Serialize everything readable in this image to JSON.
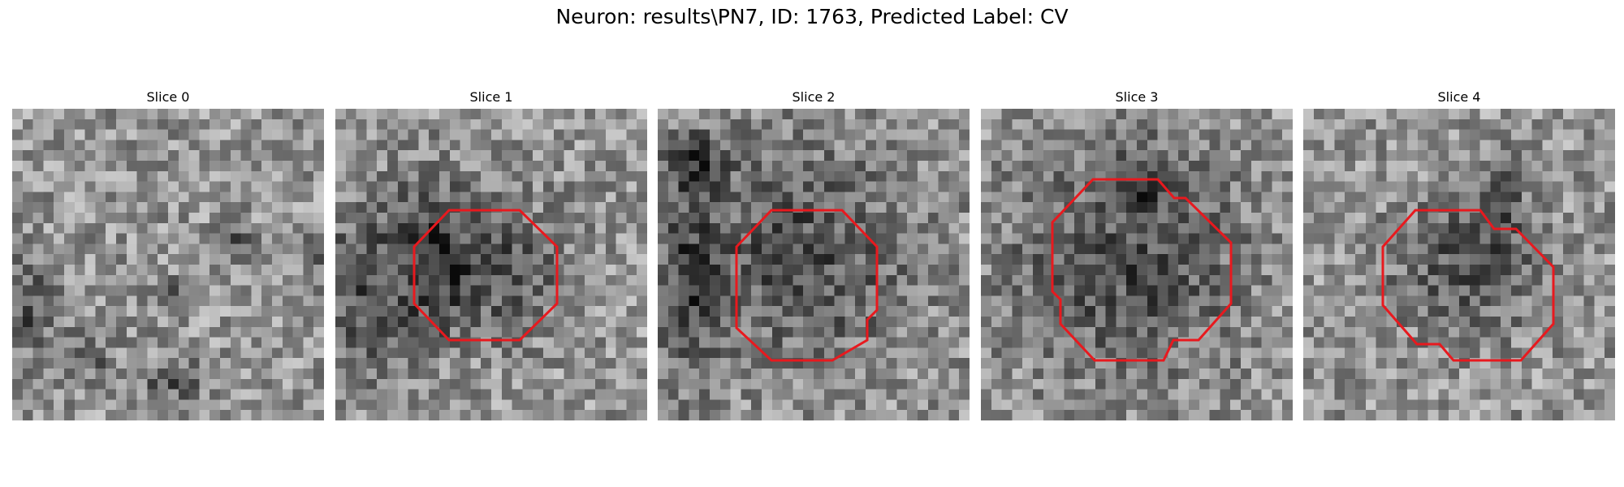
{
  "figure": {
    "title": "Neuron: results\\PN7, ID: 1763, Predicted Label: CV",
    "contour_color": "#e8191e"
  },
  "slices": [
    {
      "title": "Slice 0",
      "has_contour": false,
      "dark_blobs": [
        [
          0.03,
          0.62,
          0.09,
          0.14
        ],
        [
          0.2,
          0.78,
          0.09,
          0.06
        ],
        [
          0.7,
          0.42,
          0.06,
          0.05
        ],
        [
          0.48,
          0.57,
          0.05,
          0.05
        ],
        [
          0.95,
          0.45,
          0.05,
          0.07
        ],
        [
          0.5,
          0.85,
          0.1,
          0.06
        ]
      ]
    },
    {
      "title": "Slice 1",
      "has_contour": true,
      "dark_blobs": [
        [
          0.5,
          0.5,
          0.22,
          0.2
        ],
        [
          0.1,
          0.55,
          0.15,
          0.3
        ],
        [
          0.3,
          0.45,
          0.1,
          0.25
        ]
      ]
    },
    {
      "title": "Slice 2",
      "has_contour": true,
      "dark_blobs": [
        [
          0.45,
          0.45,
          0.34,
          0.34
        ],
        [
          0.08,
          0.55,
          0.1,
          0.35
        ],
        [
          0.1,
          0.15,
          0.1,
          0.1
        ]
      ]
    },
    {
      "title": "Slice 3",
      "has_contour": true,
      "dark_blobs": [
        [
          0.45,
          0.48,
          0.38,
          0.35
        ],
        [
          0.52,
          0.22,
          0.08,
          0.1
        ]
      ]
    },
    {
      "title": "Slice 4",
      "has_contour": true,
      "dark_blobs": [
        [
          0.52,
          0.48,
          0.24,
          0.2
        ],
        [
          0.62,
          0.25,
          0.06,
          0.1
        ]
      ]
    }
  ]
}
